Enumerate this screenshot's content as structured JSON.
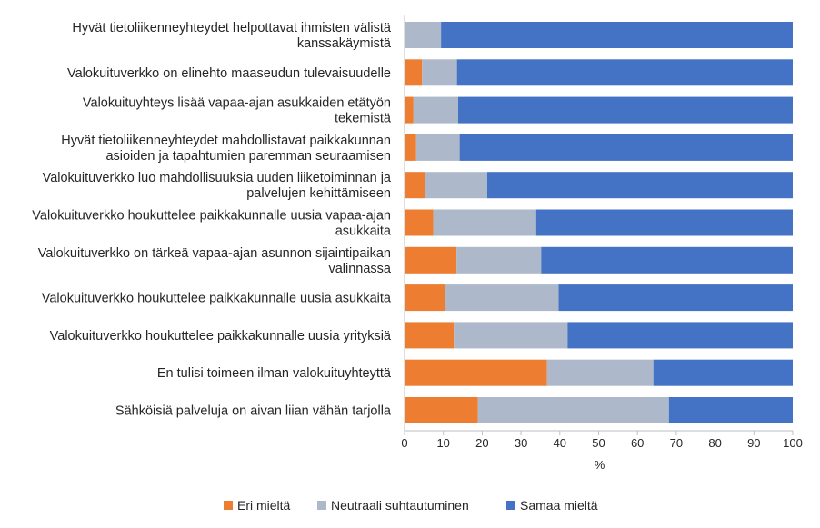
{
  "chart_data": {
    "type": "bar",
    "orientation": "horizontal",
    "stacked": true,
    "categories": [
      [
        "Hyvät tietoliikenneyhteydet helpottavat ihmisten välistä",
        "kanssakäymistä"
      ],
      [
        "Valokuituverkko on elinehto maaseudun tulevaisuudelle"
      ],
      [
        "Valokuituyhteys lisää vapaa-ajan asukkaiden etätyön",
        "tekemistä"
      ],
      [
        "Hyvät tietoliikenneyhteydet mahdollistavat paikkakunnan",
        "asioiden ja tapahtumien paremman seuraamisen"
      ],
      [
        "Valokuituverkko luo mahdollisuuksia uuden liiketoiminnan ja",
        "palvelujen kehittämiseen"
      ],
      [
        "Valokuituverkko houkuttelee paikkakunnalle uusia vapaa-ajan",
        "asukkaita"
      ],
      [
        "Valokuituverkko on tärkeä vapaa-ajan asunnon sijaintipaikan",
        "valinnassa"
      ],
      [
        "Valokuituverkko houkuttelee paikkakunnalle uusia asukkaita"
      ],
      [
        "Valokuituverkko houkuttelee paikkakunnalle uusia yrityksiä"
      ],
      [
        "En tulisi toimeen ilman valokuituyhteyttä"
      ],
      [
        "Sähköisiä palveluja on aivan liian vähän tarjolla"
      ]
    ],
    "series": [
      {
        "name": "Eri mieltä",
        "color": "#ED7D31",
        "values": [
          0,
          4.5,
          2.3,
          3,
          5.3,
          7.4,
          13.4,
          10.5,
          12.7,
          36.7,
          18.9
        ]
      },
      {
        "name": "Neutraali suhtautuminen",
        "color": "#ADB9CA",
        "values": [
          9.4,
          9,
          11.5,
          11.2,
          16,
          26.5,
          21.8,
          29.2,
          29.3,
          27.4,
          49.2
        ]
      },
      {
        "name": "Samaa mieltä",
        "color": "#4472C4",
        "values": [
          90.6,
          86.5,
          86.2,
          85.8,
          78.7,
          66.1,
          64.8,
          60.3,
          58,
          35.9,
          31.9
        ]
      }
    ],
    "xlabel": "%",
    "xlim": [
      0,
      100
    ],
    "xticks": [
      "0",
      "10",
      "20",
      "30",
      "40",
      "50",
      "60",
      "70",
      "80",
      "90",
      "100"
    ],
    "grid": false,
    "legend_position": "bottom"
  }
}
